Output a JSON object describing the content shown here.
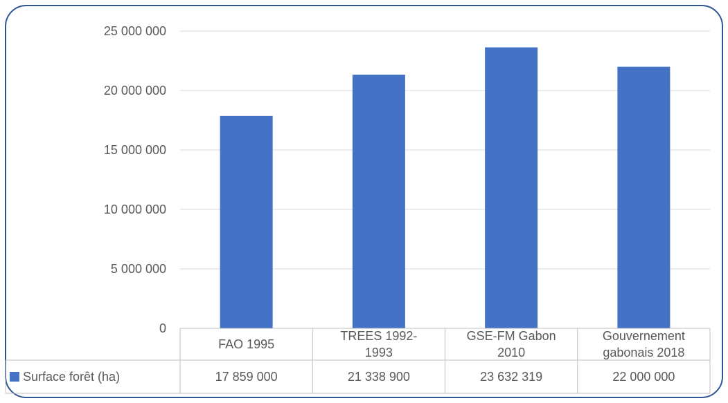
{
  "chart_data": {
    "type": "bar",
    "title": "",
    "xlabel": "",
    "ylabel": "",
    "categories": [
      [
        "FAO 1995"
      ],
      [
        "TREES 1992-",
        "1993"
      ],
      [
        "GSE-FM Gabon",
        "2010"
      ],
      [
        "Gouvernement",
        "gabonais 2018"
      ]
    ],
    "series": [
      {
        "name": "Surface forêt (ha)",
        "values": [
          17859000,
          21338900,
          23632319,
          22000000
        ],
        "value_labels": [
          "17 859 000",
          "21 338 900",
          "23 632 319",
          "22 000 000"
        ]
      }
    ],
    "yticks": [
      {
        "value": 0,
        "label": "0"
      },
      {
        "value": 5000000,
        "label": "5 000 000"
      },
      {
        "value": 10000000,
        "label": "10 000 000"
      },
      {
        "value": 15000000,
        "label": "15 000 000"
      },
      {
        "value": 20000000,
        "label": "20 000 000"
      },
      {
        "value": 25000000,
        "label": "25 000 000"
      }
    ],
    "ylim": [
      0,
      25000000
    ],
    "grid": true,
    "legend": "data-table",
    "colors": {
      "bar": "#4472C4",
      "frame": "#2F5597",
      "grid": "#D9D9D9",
      "table_border": "#BFBFBF",
      "text": "#595959"
    }
  }
}
